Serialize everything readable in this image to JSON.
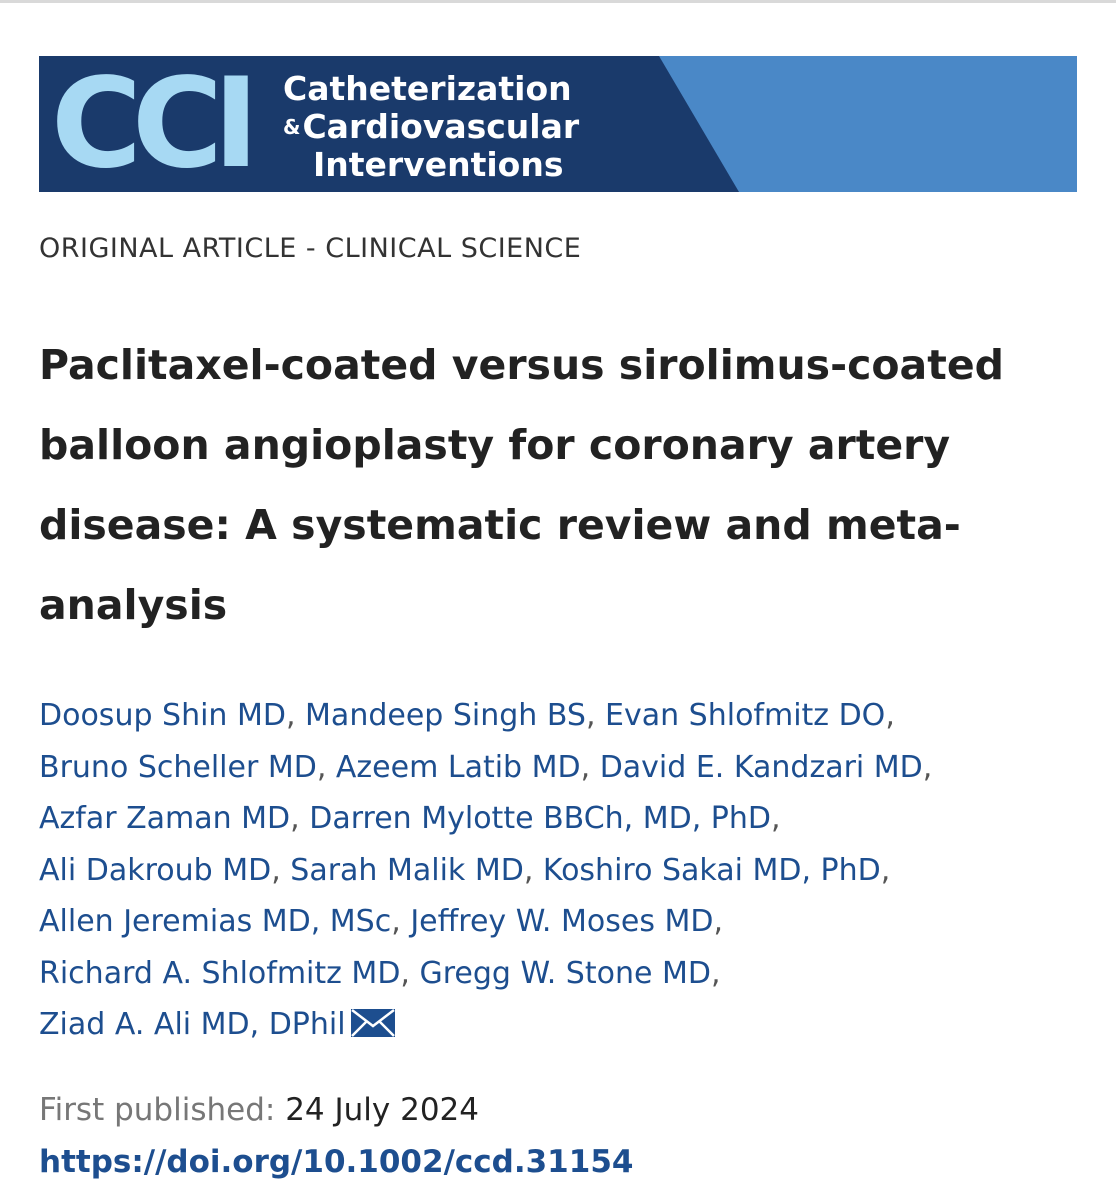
{
  "journal": {
    "logo_letters": "CCI",
    "name_line1": "Catheterization",
    "name_amp": "&",
    "name_line2": "Cardiovascular",
    "name_line3": "Interventions",
    "colors": {
      "navy": "#1a3a6b",
      "light_blue": "#a7d9f3",
      "stripe_blue": "#4a88c7"
    }
  },
  "article": {
    "category": "ORIGINAL ARTICLE - CLINICAL SCIENCE",
    "title": "Paclitaxel-coated versus sirolimus-coated balloon angioplasty for coronary artery disease: A systematic review and meta-analysis",
    "authors": [
      "Doosup Shin MD",
      "Mandeep Singh BS",
      "Evan Shlofmitz DO",
      "Bruno Scheller MD",
      "Azeem Latib MD",
      "David E. Kandzari MD",
      "Azfar Zaman MD",
      "Darren Mylotte BBCh, MD, PhD",
      "Ali Dakroub MD",
      "Sarah Malik MD",
      "Koshiro Sakai MD, PhD",
      "Allen Jeremias MD, MSc",
      "Jeffrey W. Moses MD",
      "Richard A. Shlofmitz MD",
      "Gregg W. Stone MD",
      "Ziad A. Ali MD, DPhil"
    ],
    "corresponding_icon": "envelope-icon",
    "published_label": "First published:",
    "published_date": "24 July 2024",
    "doi": "https://doi.org/10.1002/ccd.31154",
    "link_color": "#1d4e8f"
  }
}
